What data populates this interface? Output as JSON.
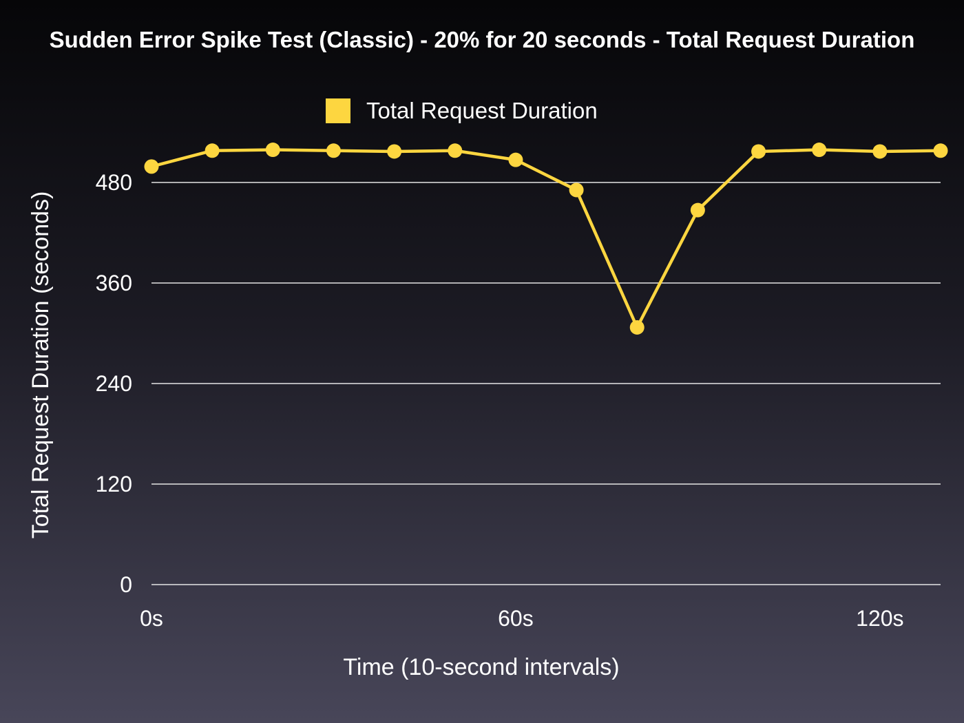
{
  "chart_data": {
    "type": "line",
    "title": "Sudden Error Spike Test (Classic) - 20% for 20 seconds - Total Request Duration",
    "xlabel": "Time (10-second intervals)",
    "ylabel": "Total Request Duration (seconds)",
    "x": [
      0,
      10,
      20,
      30,
      40,
      50,
      60,
      70,
      80,
      90,
      100,
      110,
      120,
      130
    ],
    "x_ticks": [
      0,
      60,
      120
    ],
    "x_tick_labels": [
      "0s",
      "60s",
      "120s"
    ],
    "xlim": [
      0,
      130
    ],
    "y_ticks": [
      0,
      120,
      240,
      360,
      480
    ],
    "y_tick_labels": [
      "0",
      "120",
      "240",
      "360",
      "480"
    ],
    "ylim": [
      0,
      500
    ],
    "grid": "horizontal",
    "legend_position": "top-center",
    "series": [
      {
        "name": "Total Request Duration",
        "color": "#fdd640",
        "values": [
          499,
          518,
          519,
          518,
          517,
          518,
          507,
          471,
          307,
          447,
          517,
          519,
          517,
          518
        ]
      }
    ]
  }
}
